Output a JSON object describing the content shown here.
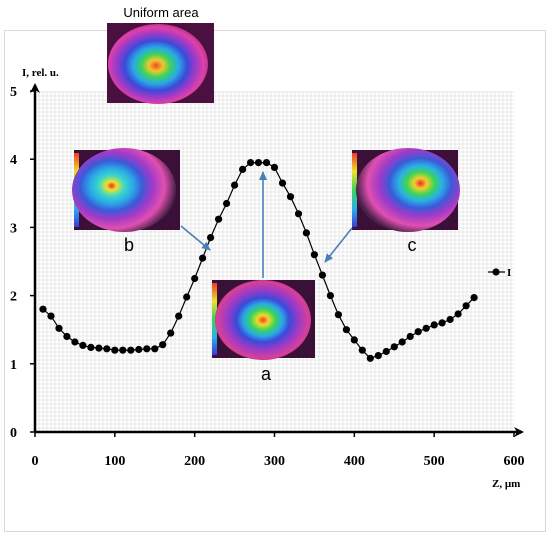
{
  "chart_data": {
    "type": "line",
    "ylabel": "I, rel. u.",
    "xlabel": "Z, µm",
    "xlim": [
      0,
      600
    ],
    "ylim": [
      0,
      5
    ],
    "x_ticks": [
      "0",
      "100",
      "200",
      "300",
      "400",
      "500",
      "600"
    ],
    "y_ticks": [
      "0",
      "1",
      "2",
      "3",
      "4",
      "5"
    ],
    "grid": true,
    "legend_position": "right",
    "series": [
      {
        "name": "I",
        "color": "#000000",
        "points": [
          [
            10,
            1.8
          ],
          [
            20,
            1.7
          ],
          [
            30,
            1.52
          ],
          [
            40,
            1.4
          ],
          [
            50,
            1.32
          ],
          [
            60,
            1.27
          ],
          [
            70,
            1.24
          ],
          [
            80,
            1.23
          ],
          [
            90,
            1.22
          ],
          [
            100,
            1.2
          ],
          [
            110,
            1.2
          ],
          [
            120,
            1.2
          ],
          [
            130,
            1.21
          ],
          [
            140,
            1.22
          ],
          [
            150,
            1.22
          ],
          [
            160,
            1.28
          ],
          [
            170,
            1.45
          ],
          [
            180,
            1.7
          ],
          [
            190,
            1.98
          ],
          [
            200,
            2.25
          ],
          [
            210,
            2.55
          ],
          [
            220,
            2.85
          ],
          [
            230,
            3.12
          ],
          [
            240,
            3.35
          ],
          [
            250,
            3.62
          ],
          [
            260,
            3.85
          ],
          [
            270,
            3.95
          ],
          [
            280,
            3.95
          ],
          [
            290,
            3.95
          ],
          [
            300,
            3.88
          ],
          [
            310,
            3.65
          ],
          [
            320,
            3.45
          ],
          [
            330,
            3.2
          ],
          [
            340,
            2.92
          ],
          [
            350,
            2.6
          ],
          [
            360,
            2.3
          ],
          [
            370,
            2.0
          ],
          [
            380,
            1.72
          ],
          [
            390,
            1.5
          ],
          [
            400,
            1.35
          ],
          [
            410,
            1.2
          ],
          [
            420,
            1.08
          ],
          [
            430,
            1.12
          ],
          [
            440,
            1.18
          ],
          [
            450,
            1.25
          ],
          [
            460,
            1.32
          ],
          [
            470,
            1.4
          ],
          [
            480,
            1.47
          ],
          [
            490,
            1.52
          ],
          [
            500,
            1.57
          ],
          [
            510,
            1.6
          ],
          [
            520,
            1.65
          ],
          [
            530,
            1.73
          ],
          [
            540,
            1.85
          ],
          [
            550,
            1.97
          ]
        ]
      }
    ],
    "annotations": {
      "uniform_area": "Uniform area",
      "label_a": "a",
      "label_b": "b",
      "label_c": "c"
    }
  },
  "colors": {
    "arrow": "#4a7ebb",
    "grid": "#d4d4d4",
    "axis": "#000000"
  }
}
